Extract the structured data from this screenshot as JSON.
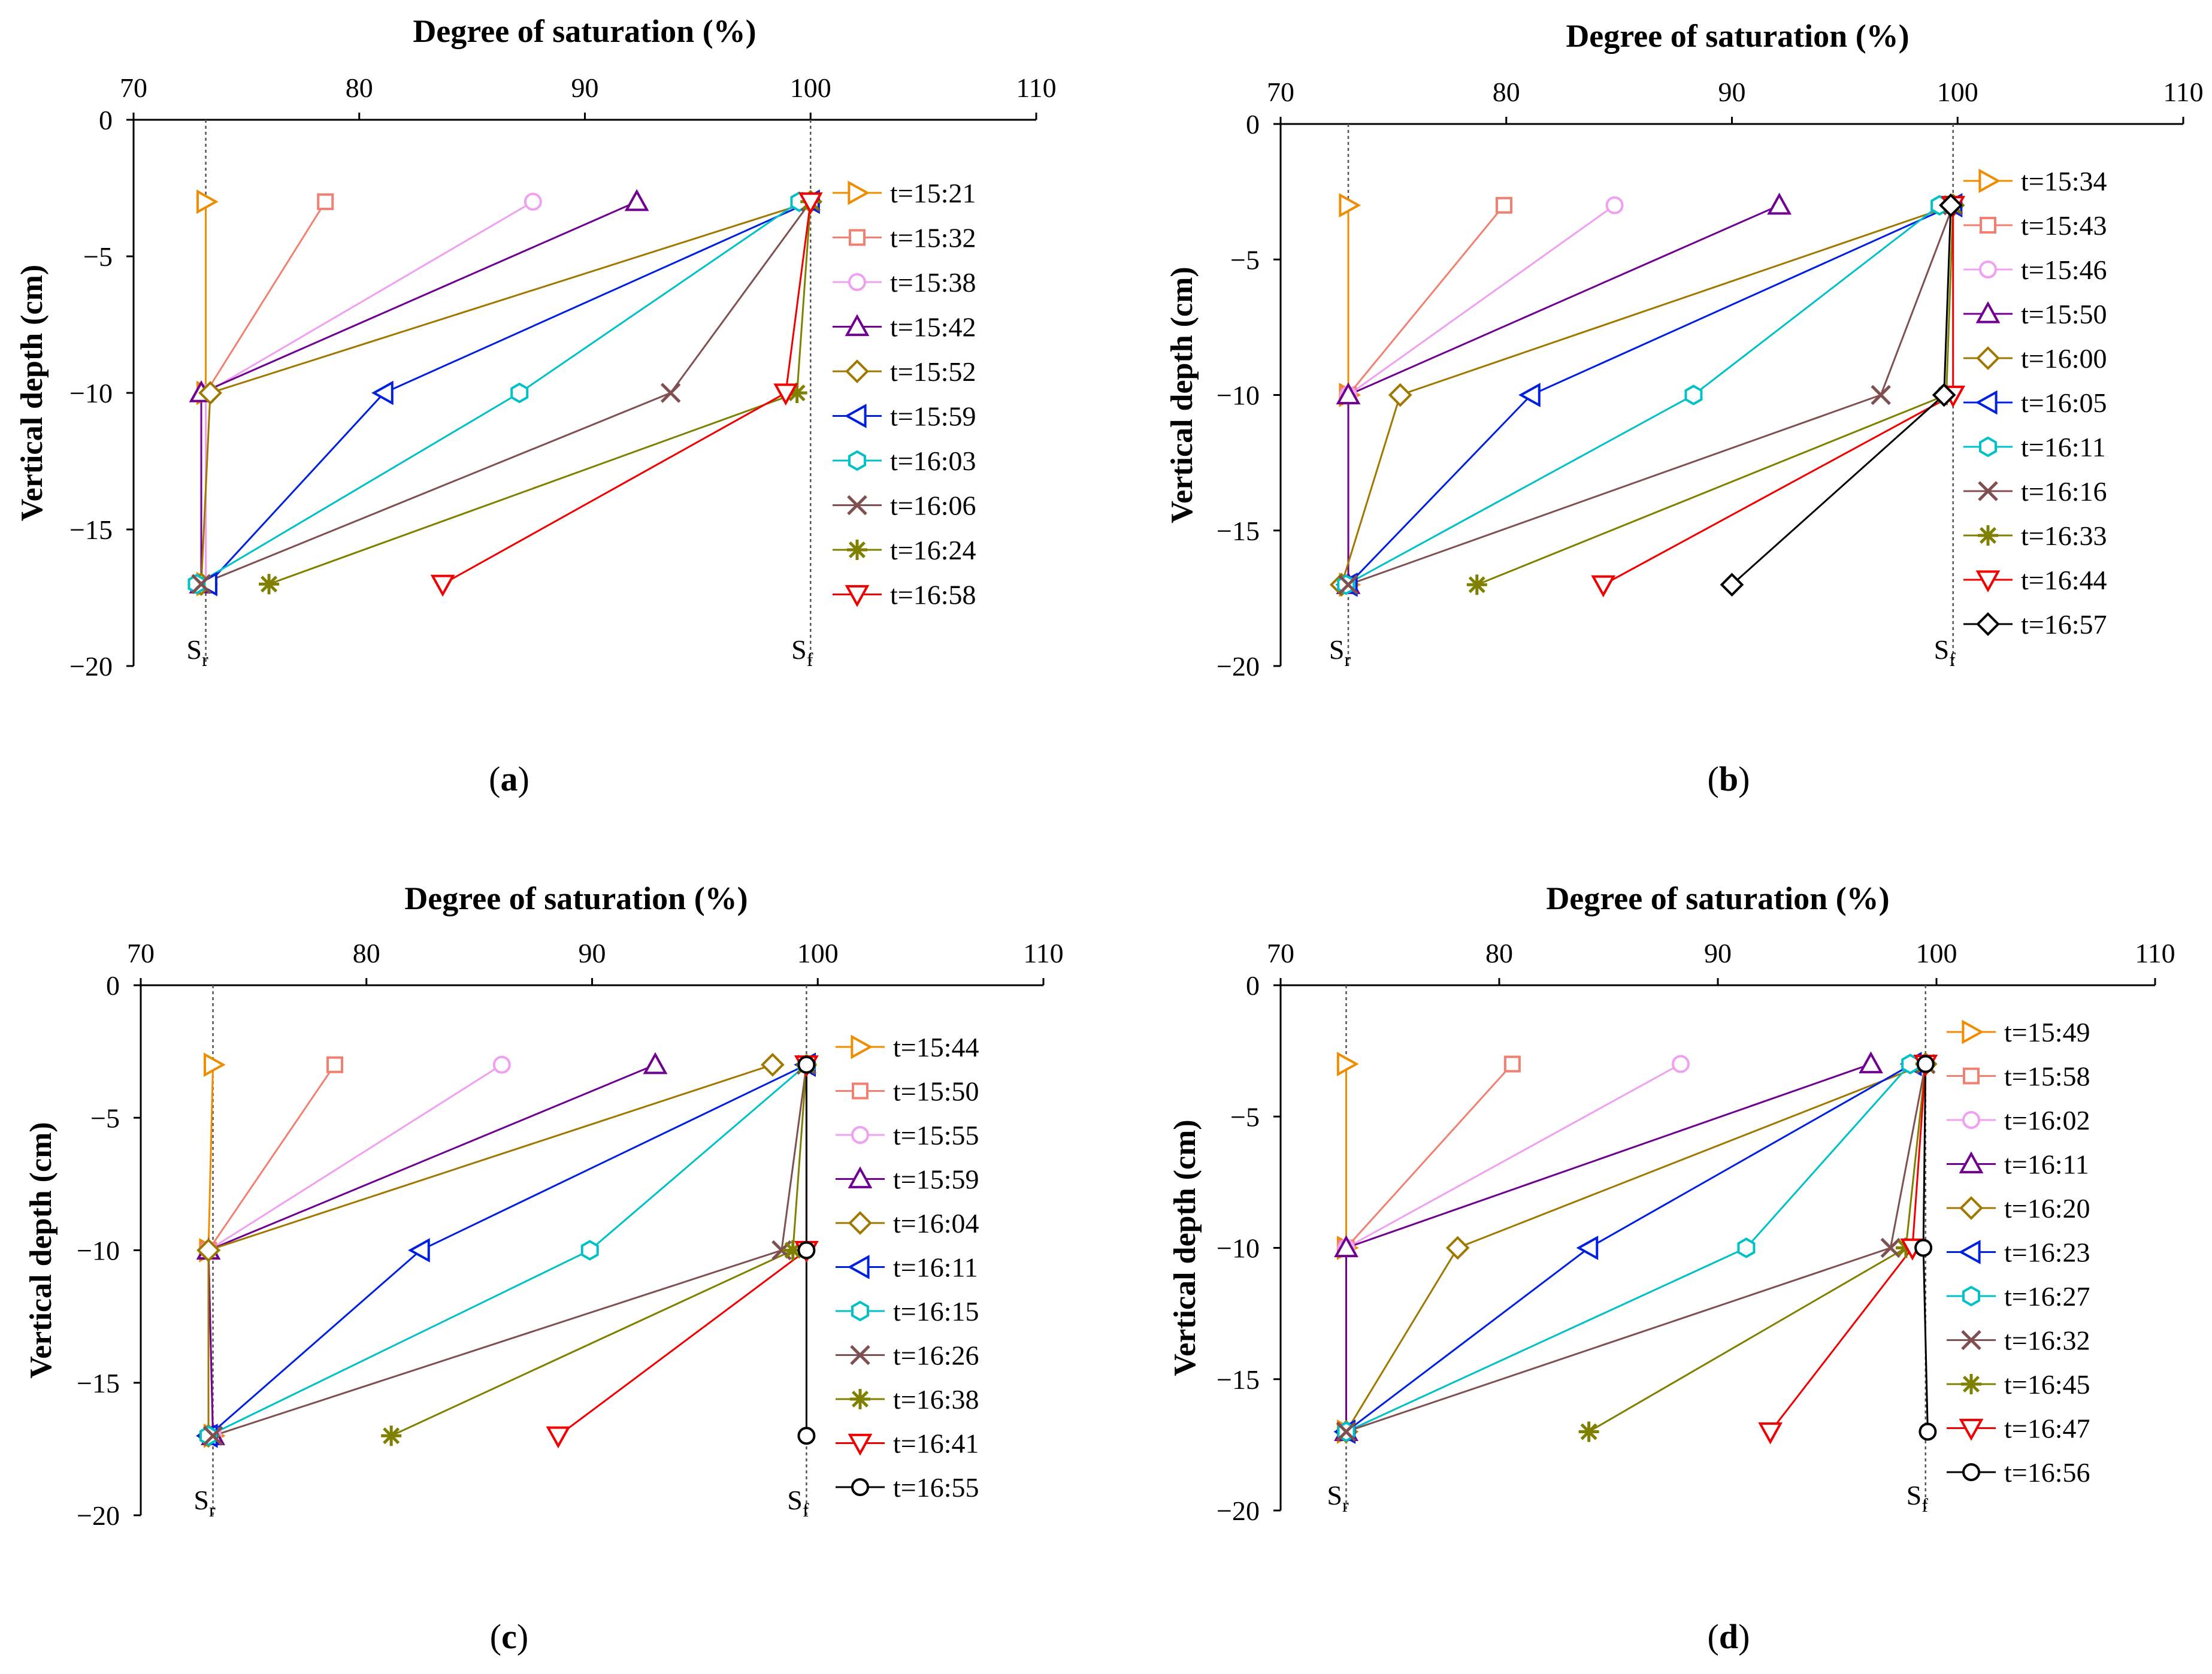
{
  "colors": {
    "orange": "#F08C00",
    "salmon": "#F28070",
    "pink": "#F0A0F0",
    "purple": "#700090",
    "olive": "#A07800",
    "blue": "#0020E0",
    "cyan": "#00C0C8",
    "brown": "#805050",
    "green": "#808000",
    "red": "#F00000",
    "black": "#000000"
  },
  "chart_data": [
    {
      "type": "line",
      "panel_label": "(a)",
      "title": "Degree of saturation (%)",
      "xlabel": "Degree of saturation (%)",
      "ylabel": "Vertical depth (cm)",
      "xlim": [
        70,
        110
      ],
      "ylim": [
        -20,
        0
      ],
      "xticks": [
        "70",
        "80",
        "90",
        "100",
        "110"
      ],
      "yticks": [
        "0",
        "−5",
        "−10",
        "−15",
        "−20"
      ],
      "ref_lines": [
        {
          "name": "S",
          "sub": "r",
          "x": 73.2
        },
        {
          "name": "S",
          "sub": "f",
          "x": 100
        }
      ],
      "legend_position": "right",
      "series": [
        {
          "name": "t=15:21",
          "color": "orange",
          "marker": "tri-right",
          "points": [
            [
              73.2,
              -3
            ],
            [
              73.2,
              -10
            ],
            [
              73.2,
              -17
            ]
          ]
        },
        {
          "name": "t=15:32",
          "color": "salmon",
          "marker": "square",
          "points": [
            [
              78.5,
              -3
            ],
            [
              73.2,
              -10
            ],
            [
              73.2,
              -17
            ]
          ]
        },
        {
          "name": "t=15:38",
          "color": "pink",
          "marker": "circle",
          "points": [
            [
              87.7,
              -3
            ],
            [
              73.2,
              -10
            ],
            [
              73.2,
              -17
            ]
          ]
        },
        {
          "name": "t=15:42",
          "color": "purple",
          "marker": "tri-up",
          "points": [
            [
              92.3,
              -3
            ],
            [
              73.0,
              -10
            ],
            [
              73.0,
              -17
            ]
          ]
        },
        {
          "name": "t=15:52",
          "color": "olive",
          "marker": "diamond",
          "points": [
            [
              100,
              -3
            ],
            [
              73.4,
              -10
            ],
            [
              73.0,
              -17
            ]
          ]
        },
        {
          "name": "t=15:59",
          "color": "blue",
          "marker": "tri-left",
          "points": [
            [
              100,
              -3
            ],
            [
              81.1,
              -10
            ],
            [
              73.3,
              -17
            ]
          ]
        },
        {
          "name": "t=16:03",
          "color": "cyan",
          "marker": "hexagon",
          "points": [
            [
              99.5,
              -3
            ],
            [
              87.1,
              -10
            ],
            [
              72.8,
              -17
            ]
          ]
        },
        {
          "name": "t=16:06",
          "color": "brown",
          "marker": "x",
          "points": [
            [
              100,
              -3
            ],
            [
              93.8,
              -10
            ],
            [
              73.0,
              -17
            ]
          ]
        },
        {
          "name": "t=16:24",
          "color": "green",
          "marker": "asterisk",
          "points": [
            [
              100,
              -3
            ],
            [
              99.4,
              -10
            ],
            [
              76.0,
              -17
            ]
          ]
        },
        {
          "name": "t=16:58",
          "color": "red",
          "marker": "tri-down",
          "points": [
            [
              100,
              -3
            ],
            [
              98.9,
              -10
            ],
            [
              83.7,
              -17
            ]
          ]
        }
      ]
    },
    {
      "type": "line",
      "panel_label": "(b)",
      "title": "Degree of saturation (%)",
      "xlabel": "Degree of saturation (%)",
      "ylabel": "Vertical depth (cm)",
      "xlim": [
        70,
        110
      ],
      "ylim": [
        -20,
        0
      ],
      "xticks": [
        "70",
        "80",
        "90",
        "100",
        "110"
      ],
      "yticks": [
        "0",
        "−5",
        "−10",
        "−15",
        "−20"
      ],
      "ref_lines": [
        {
          "name": "S",
          "sub": "r",
          "x": 73.0
        },
        {
          "name": "S",
          "sub": "f",
          "x": 99.8
        }
      ],
      "legend_position": "right",
      "series": [
        {
          "name": "t=15:34",
          "color": "orange",
          "marker": "tri-right",
          "points": [
            [
              73.0,
              -3
            ],
            [
              73.0,
              -10
            ],
            [
              73.0,
              -17
            ]
          ]
        },
        {
          "name": "t=15:43",
          "color": "salmon",
          "marker": "square",
          "points": [
            [
              79.9,
              -3
            ],
            [
              73.0,
              -10
            ],
            [
              73.0,
              -17
            ]
          ]
        },
        {
          "name": "t=15:46",
          "color": "pink",
          "marker": "circle",
          "points": [
            [
              84.8,
              -3
            ],
            [
              73.0,
              -10
            ],
            [
              73.0,
              -17
            ]
          ]
        },
        {
          "name": "t=15:50",
          "color": "purple",
          "marker": "tri-up",
          "points": [
            [
              92.1,
              -3
            ],
            [
              73.0,
              -10
            ],
            [
              73.0,
              -17
            ]
          ]
        },
        {
          "name": "t=16:00",
          "color": "olive",
          "marker": "diamond",
          "points": [
            [
              99.8,
              -3
            ],
            [
              75.3,
              -10
            ],
            [
              72.7,
              -17
            ]
          ]
        },
        {
          "name": "t=16:05",
          "color": "blue",
          "marker": "tri-left",
          "points": [
            [
              99.8,
              -3
            ],
            [
              81.1,
              -10
            ],
            [
              73.0,
              -17
            ]
          ]
        },
        {
          "name": "t=16:11",
          "color": "cyan",
          "marker": "hexagon",
          "points": [
            [
              99.2,
              -3
            ],
            [
              88.3,
              -10
            ],
            [
              72.9,
              -17
            ]
          ]
        },
        {
          "name": "t=16:16",
          "color": "brown",
          "marker": "x",
          "points": [
            [
              99.8,
              -3
            ],
            [
              96.6,
              -10
            ],
            [
              73.0,
              -17
            ]
          ]
        },
        {
          "name": "t=16:33",
          "color": "green",
          "marker": "asterisk",
          "points": [
            [
              99.8,
              -3
            ],
            [
              99.5,
              -10
            ],
            [
              78.7,
              -17
            ]
          ]
        },
        {
          "name": "t=16:44",
          "color": "red",
          "marker": "tri-down",
          "points": [
            [
              99.8,
              -3
            ],
            [
              99.8,
              -10
            ],
            [
              84.3,
              -17
            ]
          ]
        },
        {
          "name": "t=16:57",
          "color": "black",
          "marker": "diamond",
          "points": [
            [
              99.7,
              -3
            ],
            [
              99.4,
              -10
            ],
            [
              90.0,
              -17
            ]
          ]
        }
      ]
    },
    {
      "type": "line",
      "panel_label": "(c)",
      "title": "Degree of saturation (%)",
      "xlabel": "Degree of saturation (%)",
      "ylabel": "Vertical depth (cm)",
      "xlim": [
        70,
        110
      ],
      "ylim": [
        -20,
        0
      ],
      "xticks": [
        "70",
        "80",
        "90",
        "100",
        "110"
      ],
      "yticks": [
        "0",
        "−5",
        "−10",
        "−15",
        "−20"
      ],
      "ref_lines": [
        {
          "name": "S",
          "sub": "r",
          "x": 73.2
        },
        {
          "name": "S",
          "sub": "f",
          "x": 99.5
        }
      ],
      "legend_position": "right",
      "series": [
        {
          "name": "t=15:44",
          "color": "orange",
          "marker": "tri-right",
          "points": [
            [
              73.2,
              -3
            ],
            [
              73.0,
              -10
            ],
            [
              73.2,
              -17
            ]
          ]
        },
        {
          "name": "t=15:50",
          "color": "salmon",
          "marker": "square",
          "points": [
            [
              78.6,
              -3
            ],
            [
              73.0,
              -10
            ],
            [
              73.2,
              -17
            ]
          ]
        },
        {
          "name": "t=15:55",
          "color": "pink",
          "marker": "circle",
          "points": [
            [
              86.0,
              -3
            ],
            [
              73.0,
              -10
            ],
            [
              73.2,
              -17
            ]
          ]
        },
        {
          "name": "t=15:59",
          "color": "purple",
          "marker": "tri-up",
          "points": [
            [
              92.8,
              -3
            ],
            [
              73.0,
              -10
            ],
            [
              73.2,
              -17
            ]
          ]
        },
        {
          "name": "t=16:04",
          "color": "olive",
          "marker": "diamond",
          "points": [
            [
              98.0,
              -3
            ],
            [
              73.0,
              -10
            ],
            [
              73.0,
              -17
            ]
          ]
        },
        {
          "name": "t=16:11",
          "color": "blue",
          "marker": "tri-left",
          "points": [
            [
              99.5,
              -3
            ],
            [
              82.4,
              -10
            ],
            [
              73.0,
              -17
            ]
          ]
        },
        {
          "name": "t=16:15",
          "color": "cyan",
          "marker": "hexagon",
          "points": [
            [
              99.5,
              -3
            ],
            [
              89.9,
              -10
            ],
            [
              73.0,
              -17
            ]
          ]
        },
        {
          "name": "t=16:26",
          "color": "brown",
          "marker": "x",
          "points": [
            [
              99.5,
              -3
            ],
            [
              98.4,
              -10
            ],
            [
              73.2,
              -17
            ]
          ]
        },
        {
          "name": "t=16:38",
          "color": "green",
          "marker": "asterisk",
          "points": [
            [
              99.5,
              -3
            ],
            [
              98.9,
              -10
            ],
            [
              81.1,
              -17
            ]
          ]
        },
        {
          "name": "t=16:41",
          "color": "red",
          "marker": "tri-down",
          "points": [
            [
              99.5,
              -3
            ],
            [
              99.5,
              -10
            ],
            [
              88.5,
              -17
            ]
          ]
        },
        {
          "name": "t=16:55",
          "color": "black",
          "marker": "circle",
          "points": [
            [
              99.5,
              -3
            ],
            [
              99.5,
              -10
            ],
            [
              99.5,
              -17
            ]
          ]
        }
      ]
    },
    {
      "type": "line",
      "panel_label": "(d)",
      "title": "Degree of saturation (%)",
      "xlabel": "Degree of saturation (%)",
      "ylabel": "Vertical depth (cm)",
      "xlim": [
        70,
        110
      ],
      "ylim": [
        -20,
        0
      ],
      "xticks": [
        "70",
        "80",
        "90",
        "100",
        "110"
      ],
      "yticks": [
        "0",
        "−5",
        "−10",
        "−15",
        "−20"
      ],
      "ref_lines": [
        {
          "name": "S",
          "sub": "r",
          "x": 73.0
        },
        {
          "name": "S",
          "sub": "f",
          "x": 99.5
        }
      ],
      "legend_position": "right",
      "series": [
        {
          "name": "t=15:49",
          "color": "orange",
          "marker": "tri-right",
          "points": [
            [
              73.0,
              -3
            ],
            [
              73.0,
              -10
            ],
            [
              73.0,
              -17
            ]
          ]
        },
        {
          "name": "t=15:58",
          "color": "salmon",
          "marker": "square",
          "points": [
            [
              80.6,
              -3
            ],
            [
              73.0,
              -10
            ],
            [
              73.0,
              -17
            ]
          ]
        },
        {
          "name": "t=16:02",
          "color": "pink",
          "marker": "circle",
          "points": [
            [
              88.3,
              -3
            ],
            [
              73.0,
              -10
            ],
            [
              73.0,
              -17
            ]
          ]
        },
        {
          "name": "t=16:11",
          "color": "purple",
          "marker": "tri-up",
          "points": [
            [
              97.0,
              -3
            ],
            [
              73.0,
              -10
            ],
            [
              73.0,
              -17
            ]
          ]
        },
        {
          "name": "t=16:20",
          "color": "olive",
          "marker": "diamond",
          "points": [
            [
              99.5,
              -3
            ],
            [
              78.1,
              -10
            ],
            [
              73.0,
              -17
            ]
          ]
        },
        {
          "name": "t=16:23",
          "color": "blue",
          "marker": "tri-left",
          "points": [
            [
              98.9,
              -3
            ],
            [
              84.1,
              -10
            ],
            [
              73.0,
              -17
            ]
          ]
        },
        {
          "name": "t=16:27",
          "color": "cyan",
          "marker": "hexagon",
          "points": [
            [
              98.8,
              -3
            ],
            [
              91.3,
              -10
            ],
            [
              73.0,
              -17
            ]
          ]
        },
        {
          "name": "t=16:32",
          "color": "brown",
          "marker": "x",
          "points": [
            [
              99.5,
              -3
            ],
            [
              97.9,
              -10
            ],
            [
              73.0,
              -17
            ]
          ]
        },
        {
          "name": "t=16:45",
          "color": "green",
          "marker": "asterisk",
          "points": [
            [
              99.5,
              -3
            ],
            [
              98.6,
              -10
            ],
            [
              84.1,
              -17
            ]
          ]
        },
        {
          "name": "t=16:47",
          "color": "red",
          "marker": "tri-down",
          "points": [
            [
              99.5,
              -3
            ],
            [
              98.9,
              -10
            ],
            [
              92.4,
              -17
            ]
          ]
        },
        {
          "name": "t=16:56",
          "color": "black",
          "marker": "circle",
          "points": [
            [
              99.5,
              -3
            ],
            [
              99.4,
              -10
            ],
            [
              99.6,
              -17
            ]
          ]
        }
      ]
    }
  ]
}
